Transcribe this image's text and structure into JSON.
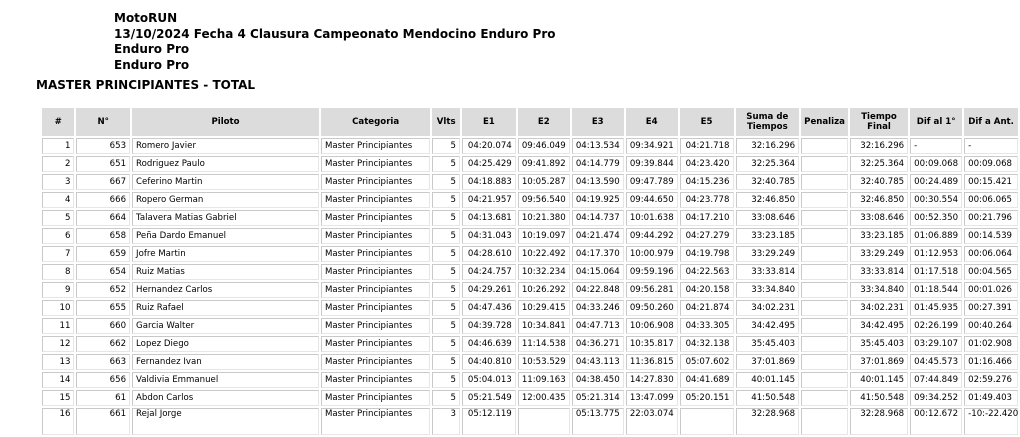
{
  "header": {
    "line1": "MotoRUN",
    "line2": "13/10/2024 Fecha 4 Clausura Campeonato Mendocino Enduro Pro",
    "line3": "Enduro Pro",
    "line4": "Enduro Pro"
  },
  "section_title": "MASTER PRINCIPIANTES - TOTAL",
  "columns": [
    "#",
    "N°",
    "Piloto",
    "Categoria",
    "Vlts",
    "E1",
    "E2",
    "E3",
    "E4",
    "E5",
    "Suma de Tiempos",
    "Penaliza",
    "Tiempo Final",
    "Dif al 1°",
    "Dif a Ant."
  ],
  "rows": [
    [
      "1",
      "653",
      "Romero Javier",
      "Master Principiantes",
      "5",
      "04:20.074",
      "09:46.049",
      "04:13.534",
      "09:34.921",
      "04:21.718",
      "32:16.296",
      "",
      "32:16.296",
      "-",
      "-"
    ],
    [
      "2",
      "651",
      "Rodriguez Paulo",
      "Master Principiantes",
      "5",
      "04:25.429",
      "09:41.892",
      "04:14.779",
      "09:39.844",
      "04:23.420",
      "32:25.364",
      "",
      "32:25.364",
      "00:09.068",
      "00:09.068"
    ],
    [
      "3",
      "667",
      "Ceferino Martin",
      "Master Principiantes",
      "5",
      "04:18.883",
      "10:05.287",
      "04:13.590",
      "09:47.789",
      "04:15.236",
      "32:40.785",
      "",
      "32:40.785",
      "00:24.489",
      "00:15.421"
    ],
    [
      "4",
      "666",
      "Ropero German",
      "Master Principiantes",
      "5",
      "04:21.957",
      "09:56.540",
      "04:19.925",
      "09:44.650",
      "04:23.778",
      "32:46.850",
      "",
      "32:46.850",
      "00:30.554",
      "00:06.065"
    ],
    [
      "5",
      "664",
      "Talavera Matias Gabriel",
      "Master Principiantes",
      "5",
      "04:13.681",
      "10:21.380",
      "04:14.737",
      "10:01.638",
      "04:17.210",
      "33:08.646",
      "",
      "33:08.646",
      "00:52.350",
      "00:21.796"
    ],
    [
      "6",
      "658",
      "Peña Dardo Emanuel",
      "Master Principiantes",
      "5",
      "04:31.043",
      "10:19.097",
      "04:21.474",
      "09:44.292",
      "04:27.279",
      "33:23.185",
      "",
      "33:23.185",
      "01:06.889",
      "00:14.539"
    ],
    [
      "7",
      "659",
      "Jofre Martin",
      "Master Principiantes",
      "5",
      "04:28.610",
      "10:22.492",
      "04:17.370",
      "10:00.979",
      "04:19.798",
      "33:29.249",
      "",
      "33:29.249",
      "01:12.953",
      "00:06.064"
    ],
    [
      "8",
      "654",
      "Ruiz Matias",
      "Master Principiantes",
      "5",
      "04:24.757",
      "10:32.234",
      "04:15.064",
      "09:59.196",
      "04:22.563",
      "33:33.814",
      "",
      "33:33.814",
      "01:17.518",
      "00:04.565"
    ],
    [
      "9",
      "652",
      "Hernandez Carlos",
      "Master Principiantes",
      "5",
      "04:29.261",
      "10:26.292",
      "04:22.848",
      "09:56.281",
      "04:20.158",
      "33:34.840",
      "",
      "33:34.840",
      "01:18.544",
      "00:01.026"
    ],
    [
      "10",
      "655",
      "Ruiz Rafael",
      "Master Principiantes",
      "5",
      "04:47.436",
      "10:29.415",
      "04:33.246",
      "09:50.260",
      "04:21.874",
      "34:02.231",
      "",
      "34:02.231",
      "01:45.935",
      "00:27.391"
    ],
    [
      "11",
      "660",
      "Garcia Walter",
      "Master Principiantes",
      "5",
      "04:39.728",
      "10:34.841",
      "04:47.713",
      "10:06.908",
      "04:33.305",
      "34:42.495",
      "",
      "34:42.495",
      "02:26.199",
      "00:40.264"
    ],
    [
      "12",
      "662",
      "Lopez Diego",
      "Master Principiantes",
      "5",
      "04:46.639",
      "11:14.538",
      "04:36.271",
      "10:35.817",
      "04:32.138",
      "35:45.403",
      "",
      "35:45.403",
      "03:29.107",
      "01:02.908"
    ],
    [
      "13",
      "663",
      "Fernandez Ivan",
      "Master Principiantes",
      "5",
      "04:40.810",
      "10:53.529",
      "04:43.113",
      "11:36.815",
      "05:07.602",
      "37:01.869",
      "",
      "37:01.869",
      "04:45.573",
      "01:16.466"
    ],
    [
      "14",
      "656",
      "Valdivia Emmanuel",
      "Master Principiantes",
      "5",
      "05:04.013",
      "11:09.163",
      "04:38.450",
      "14:27.830",
      "04:41.689",
      "40:01.145",
      "",
      "40:01.145",
      "07:44.849",
      "02:59.276"
    ],
    [
      "15",
      "61",
      "Abdon Carlos",
      "Master Principiantes",
      "5",
      "05:21.549",
      "12:00.435",
      "05:21.314",
      "13:47.099",
      "05:20.151",
      "41:50.548",
      "",
      "41:50.548",
      "09:34.252",
      "01:49.403"
    ],
    [
      "16",
      "661",
      "Rejal Jorge",
      "Master Principiantes",
      "3",
      "05:12.119",
      "",
      "05:13.775",
      "22:03.074",
      "",
      "32:28.968",
      "",
      "32:28.968",
      "00:12.672",
      "-10:-22.420"
    ]
  ]
}
